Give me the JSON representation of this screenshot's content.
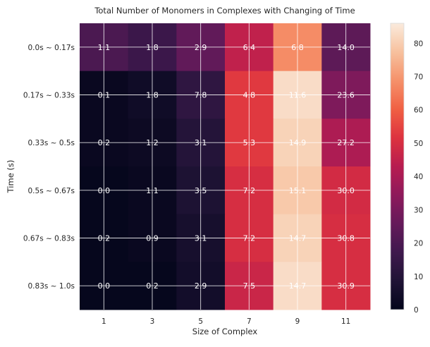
{
  "chart_data": {
    "type": "heatmap",
    "title": "Total Number of Monomers in Complexes with Changing of Time",
    "xlabel": "Size of Complex",
    "ylabel": "Time (s)",
    "x_categories": [
      "1",
      "3",
      "5",
      "7",
      "9",
      "11"
    ],
    "y_categories": [
      "0.0s ~ 0.17s",
      "0.17s ~ 0.33s",
      "0.33s ~ 0.5s",
      "0.5s ~ 0.67s",
      "0.67s ~ 0.83s",
      "0.83s ~ 1.0s"
    ],
    "cell_values": [
      [
        20,
        16,
        25,
        45,
        68,
        24
      ],
      [
        2,
        4,
        13,
        53,
        83,
        31
      ],
      [
        2,
        3,
        10,
        53,
        81,
        41
      ],
      [
        1,
        2,
        8,
        50,
        79,
        49
      ],
      [
        1,
        2,
        6,
        50,
        81,
        50
      ],
      [
        1,
        1,
        5,
        47,
        83,
        50
      ]
    ],
    "annotations": [
      [
        "1.1",
        "1.8",
        "2.9",
        "6.4",
        "6.8",
        "14.0"
      ],
      [
        "0.1",
        "1.8",
        "7.8",
        "4.8",
        "11.6",
        "23.6"
      ],
      [
        "0.2",
        "1.2",
        "3.1",
        "5.3",
        "14.9",
        "27.2"
      ],
      [
        "0.0",
        "1.1",
        "3.5",
        "7.2",
        "15.1",
        "30.0"
      ],
      [
        "0.2",
        "0.9",
        "3.1",
        "7.2",
        "14.7",
        "30.8"
      ],
      [
        "0.0",
        "0.2",
        "2.9",
        "7.5",
        "14.7",
        "30.9"
      ]
    ],
    "colorbar": {
      "range": [
        0,
        86
      ],
      "ticks": [
        "0",
        "10",
        "20",
        "30",
        "40",
        "50",
        "60",
        "70",
        "80"
      ]
    },
    "colormap": "rocket",
    "grid": true
  }
}
